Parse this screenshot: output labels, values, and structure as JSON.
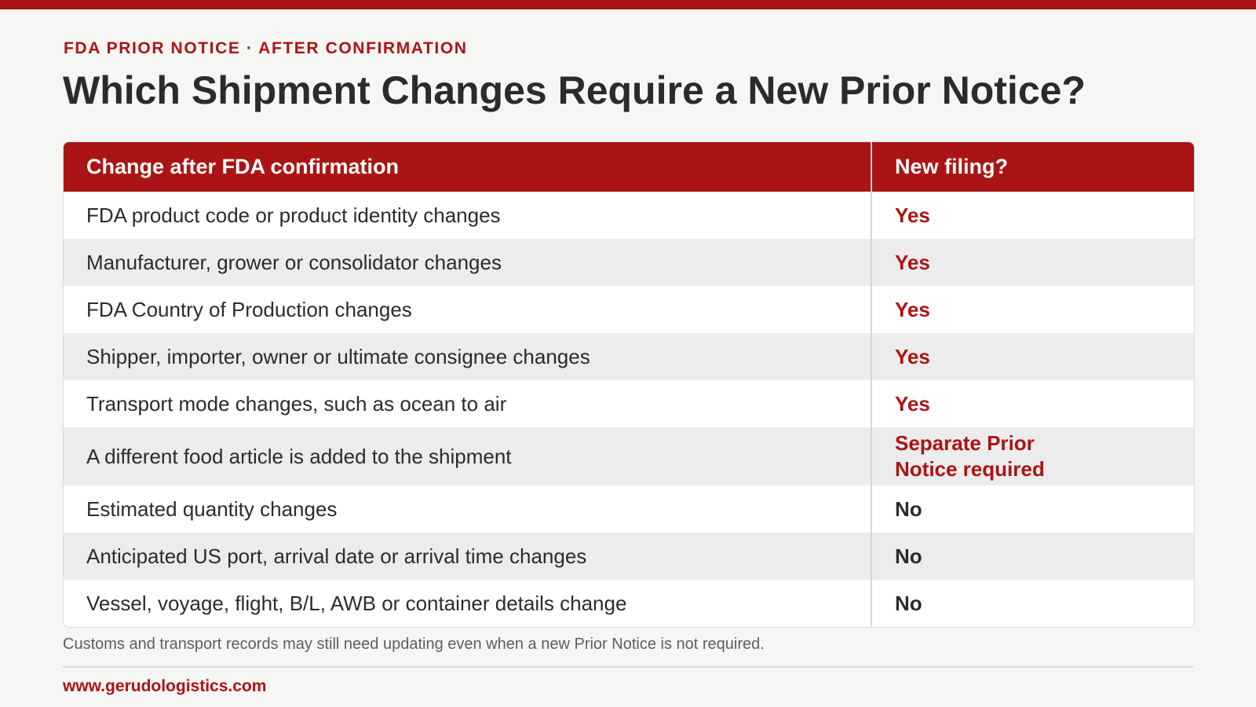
{
  "header": {
    "eyebrow": "FDA PRIOR NOTICE · AFTER CONFIRMATION",
    "title": "Which Shipment Changes Require a New Prior Notice?"
  },
  "table": {
    "columns": [
      "Change after FDA confirmation",
      "New filing?"
    ],
    "rows": [
      {
        "change": "FDA product code or product identity changes",
        "new_filing": "Yes"
      },
      {
        "change": "Manufacturer, grower or consolidator changes",
        "new_filing": "Yes"
      },
      {
        "change": "FDA Country of Production changes",
        "new_filing": "Yes"
      },
      {
        "change": "Shipper, importer, owner or ultimate consignee changes",
        "new_filing": "Yes"
      },
      {
        "change": "Transport mode changes, such as ocean to air",
        "new_filing": "Yes"
      },
      {
        "change": "A different food article is added to the shipment",
        "new_filing": "Separate Prior Notice required"
      },
      {
        "change": "Estimated quantity changes",
        "new_filing": "No"
      },
      {
        "change": "Anticipated US port, arrival date or arrival time changes",
        "new_filing": "No"
      },
      {
        "change": "Vessel, voyage, flight, B/L, AWB or container details change",
        "new_filing": "No"
      }
    ]
  },
  "footnote": "Customs and transport records may still need updating even when a new Prior Notice is not required.",
  "footer": {
    "website": "www.gerudologistics.com"
  },
  "colors": {
    "accent": "#ab1414",
    "text": "#2b2b2b",
    "background": "#f6f6f5",
    "row_alt": "#ececec"
  }
}
